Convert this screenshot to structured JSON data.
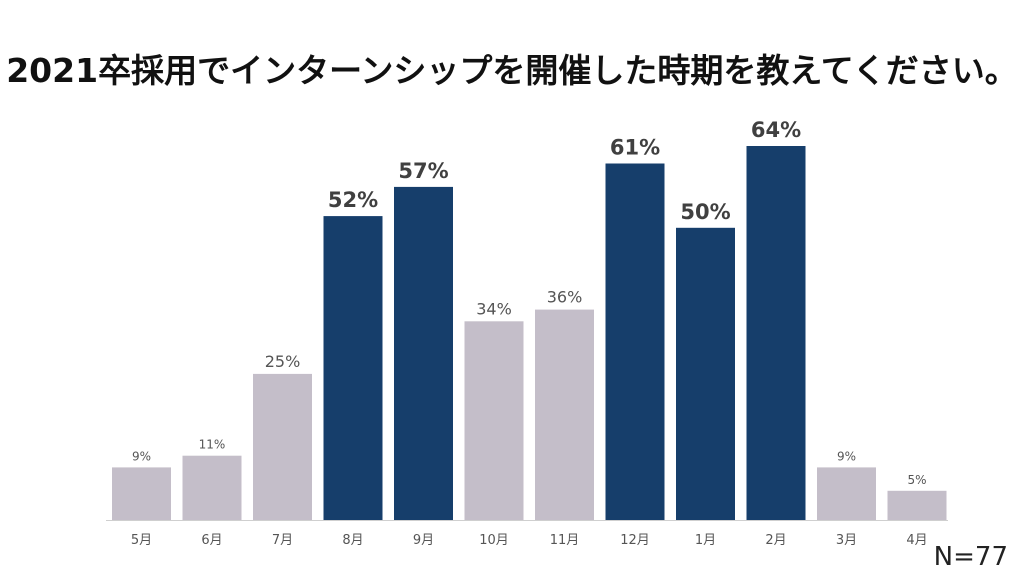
{
  "title": "2021卒採用でインターンシップを開催した時期を教えてください。",
  "sample_note": "N=77",
  "colors": {
    "highlight": "#163e6b",
    "normal": "#c4bec9",
    "axis": "#cfcfcf",
    "label_dark": "#404040",
    "label_light": "#555555",
    "tick": "#555555"
  },
  "chart_data": {
    "type": "bar",
    "title": "2021卒採用でインターンシップを開催した時期を教えてください。",
    "xlabel": "",
    "ylabel": "",
    "unit": "%",
    "categories": [
      "5月",
      "6月",
      "7月",
      "8月",
      "9月",
      "10月",
      "11月",
      "12月",
      "1月",
      "2月",
      "3月",
      "4月"
    ],
    "values": [
      9,
      11,
      25,
      52,
      57,
      34,
      36,
      61,
      50,
      64,
      9,
      5
    ],
    "labels": [
      "9%",
      "11%",
      "25%",
      "52%",
      "57%",
      "34%",
      "36%",
      "61%",
      "50%",
      "64%",
      "9%",
      "5%"
    ],
    "highlighted": [
      false,
      false,
      false,
      true,
      true,
      false,
      false,
      true,
      true,
      true,
      false,
      false
    ],
    "ylim": [
      0,
      64
    ],
    "grid": false,
    "legend": "none"
  }
}
